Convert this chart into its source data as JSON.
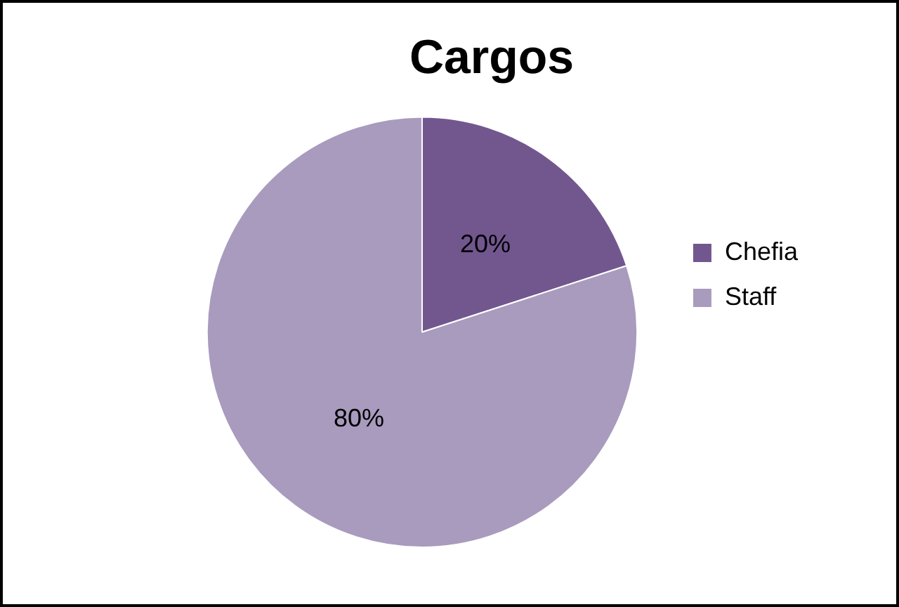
{
  "chart_data": {
    "type": "pie",
    "title": "Cargos",
    "categories": [
      "Chefia",
      "Staff"
    ],
    "values": [
      20,
      80
    ],
    "colors": [
      "#72578f",
      "#a99bbd"
    ],
    "value_labels": [
      "20%",
      "80%"
    ],
    "legend": "right"
  }
}
